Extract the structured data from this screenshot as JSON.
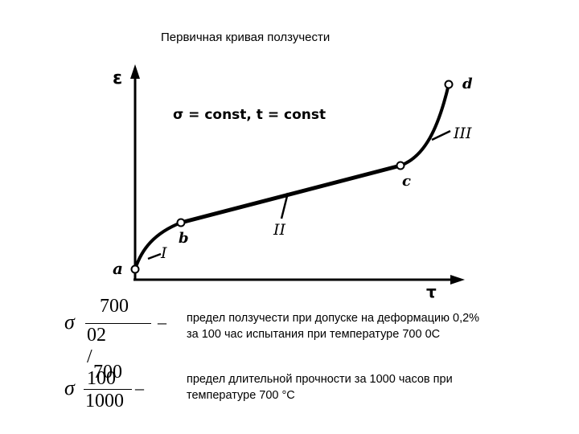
{
  "title": "Первичная кривая ползучести",
  "diagram": {
    "axis_y_label": "ε",
    "axis_x_label": "τ",
    "condition": "σ = const, t = const",
    "points": {
      "a": "a",
      "b": "b",
      "c": "c",
      "d": "d"
    },
    "stages": {
      "I": "I",
      "II": "II",
      "III": "III"
    }
  },
  "formulas": [
    {
      "symbol": "σ",
      "numerator": "700",
      "denominator": "02 / 100",
      "dash": "–",
      "description": [
        "предел ползучести при допуске на деформацию 0,2%",
        "за 100 час испытания при температуре 700 0С"
      ]
    },
    {
      "symbol": "σ",
      "numerator": "700",
      "denominator": "1000",
      "dash": "–",
      "description": [
        "предел длительной прочности за 1000 часов при",
        "температуре 700 °С"
      ]
    }
  ]
}
